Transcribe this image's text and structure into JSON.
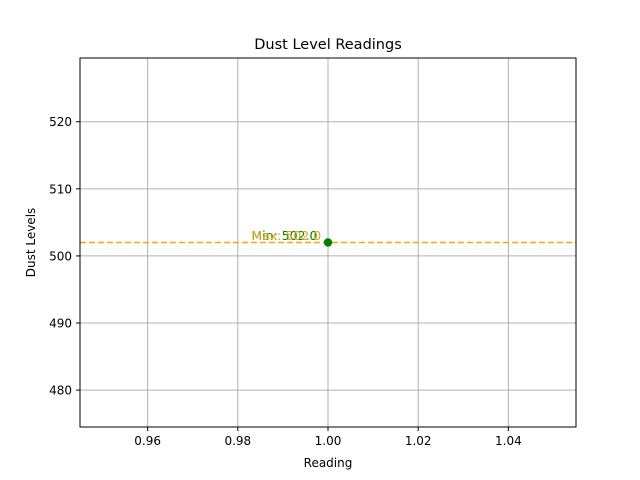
{
  "chart_data": {
    "type": "scatter",
    "title": "Dust Level Readings",
    "xlabel": "Reading",
    "ylabel": "Dust Levels",
    "xlim": [
      0.945,
      1.055
    ],
    "ylim": [
      474.5,
      529.5
    ],
    "xticks": [
      0.96,
      0.98,
      1.0,
      1.02,
      1.04
    ],
    "xtick_labels": [
      "0.96",
      "0.98",
      "1.00",
      "1.02",
      "1.04"
    ],
    "yticks": [
      480,
      490,
      500,
      510,
      520
    ],
    "ytick_labels": [
      "480",
      "490",
      "500",
      "510",
      "520"
    ],
    "grid": true,
    "points": [
      {
        "x": 1.0,
        "y": 502.0,
        "color": "#008000"
      }
    ],
    "reference_line": {
      "y": 502.0,
      "color": "#FFA500",
      "style": "dashed"
    },
    "annotations": [
      {
        "text": "Min: 502.0",
        "x": 0.983,
        "y": 502.7,
        "color": "#008000"
      },
      {
        "text": "Max: 502.0",
        "x": 0.983,
        "y": 502.7,
        "color": "#DAA520"
      }
    ]
  }
}
